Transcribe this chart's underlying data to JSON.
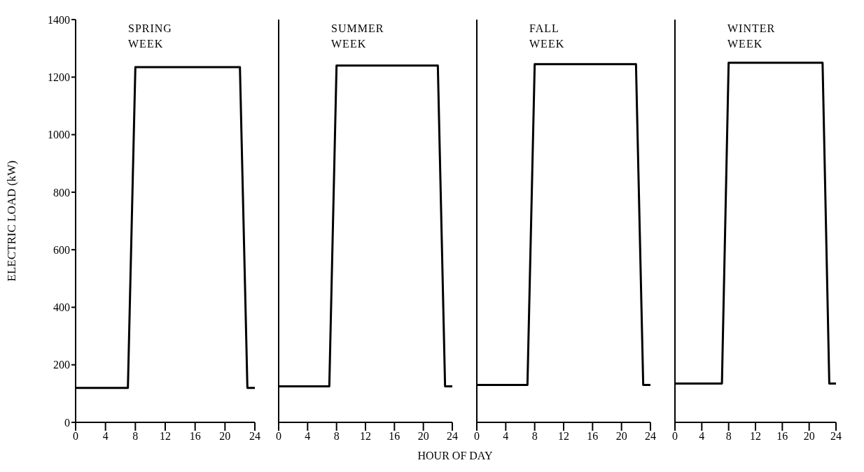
{
  "chart_data": [
    {
      "type": "line",
      "title": "SPRING WEEK",
      "ylabel": "ELECTRIC LOAD (kW)",
      "x": [
        0,
        7,
        8,
        22,
        23,
        24
      ],
      "series": [
        {
          "color": "#000000",
          "values": [
            120,
            120,
            1235,
            1235,
            120,
            120
          ]
        }
      ],
      "xlim": [
        0,
        24
      ],
      "xticks": [
        0,
        4,
        8,
        12,
        16,
        20,
        24
      ],
      "ylim": [
        0,
        1400
      ],
      "yticks": [
        0,
        200,
        400,
        600,
        800,
        1000,
        1200,
        1400
      ],
      "marker": "none"
    },
    {
      "type": "line",
      "title": "SUMMER WEEK",
      "xlabel": "HOUR OF DAY",
      "x": [
        0,
        7,
        8,
        22,
        23,
        24
      ],
      "series": [
        {
          "color": "#000000",
          "values": [
            125,
            125,
            1240,
            1240,
            125,
            125
          ]
        }
      ],
      "xlim": [
        0,
        24
      ],
      "xticks": [
        0,
        4,
        8,
        12,
        16,
        20,
        24
      ],
      "ylim": [
        0,
        1400
      ],
      "tick_labels": "x",
      "marker": "none"
    },
    {
      "type": "line",
      "title": "FALL WEEK",
      "x": [
        0,
        7,
        8,
        22,
        23,
        24
      ],
      "series": [
        {
          "color": "#000000",
          "values": [
            130,
            130,
            1245,
            1245,
            130,
            130
          ]
        }
      ],
      "xlim": [
        0,
        24
      ],
      "xticks": [
        0,
        4,
        8,
        12,
        16,
        20,
        24
      ],
      "ylim": [
        0,
        1400
      ],
      "tick_labels": "x",
      "marker": "none"
    },
    {
      "type": "line",
      "title": "WINTER WEEK",
      "x": [
        0,
        7,
        8,
        22,
        23,
        24
      ],
      "series": [
        {
          "color": "#000000",
          "values": [
            135,
            135,
            1250,
            1250,
            135,
            135
          ]
        }
      ],
      "xlim": [
        0,
        24
      ],
      "xticks": [
        0,
        4,
        8,
        12,
        16,
        20,
        24
      ],
      "ylim": [
        0,
        1400
      ],
      "tick_labels": "x",
      "marker": "none"
    }
  ]
}
